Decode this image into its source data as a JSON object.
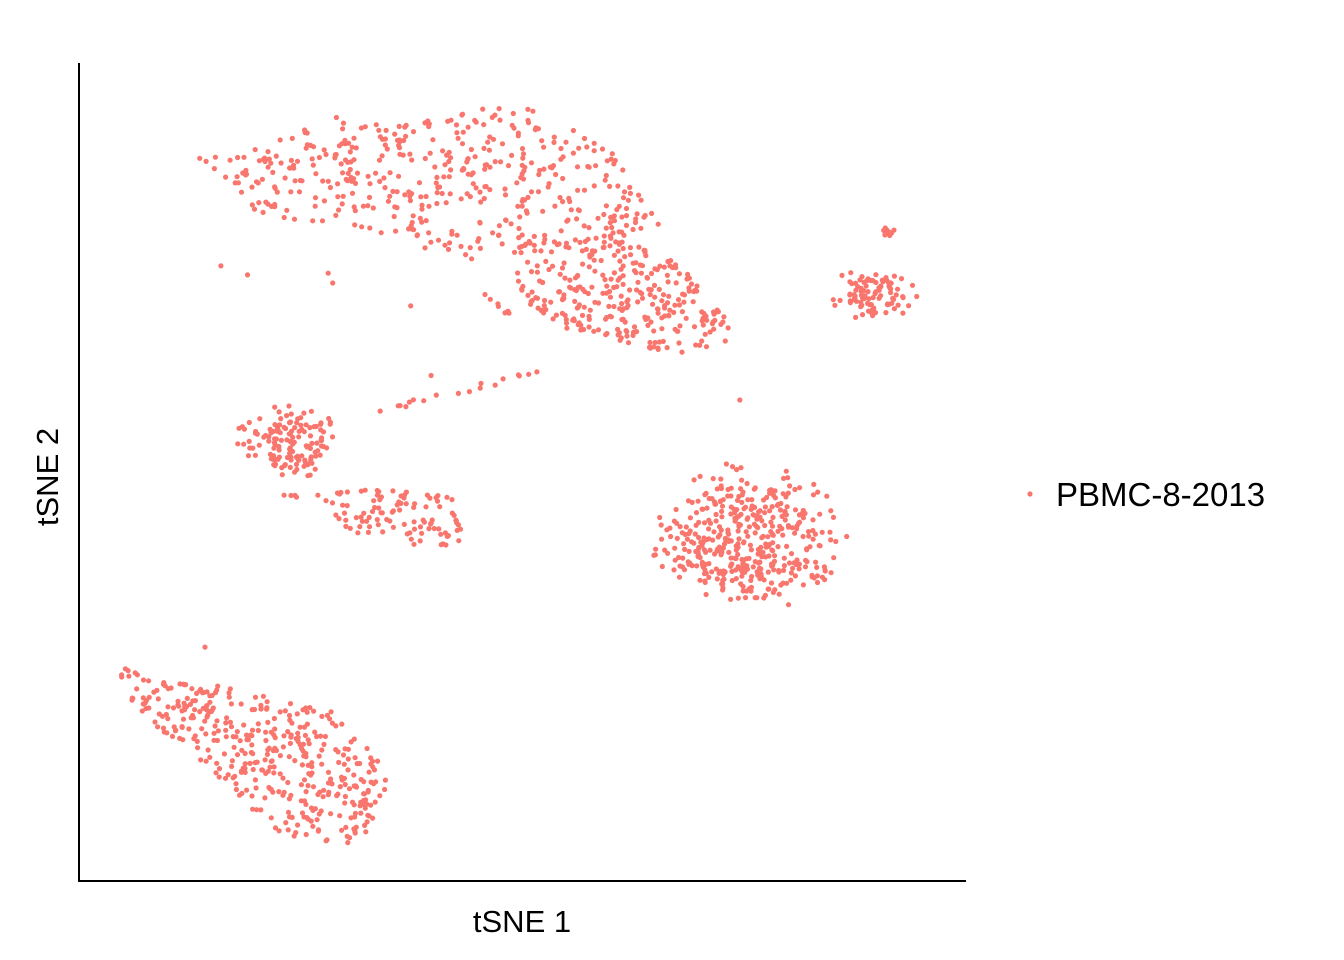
{
  "chart_data": {
    "type": "scatter",
    "title": "",
    "xlabel": "tSNE 1",
    "ylabel": "tSNE 2",
    "xlim": [
      0,
      100
    ],
    "ylim": [
      0,
      100
    ],
    "grid": false,
    "legend_placement": "right",
    "series": [
      {
        "name": "PBMC-8-2013",
        "color": "#F8766D",
        "clusters": [
          {
            "id": "top-left-band",
            "kind": "polygon",
            "count": 430,
            "seed": 11,
            "poly": [
              [
                13.5,
                88.4
              ],
              [
                21.3,
                89.8
              ],
              [
                28.0,
                93.9
              ],
              [
                33.3,
                92.7
              ],
              [
                42.7,
                94.0
              ],
              [
                49.5,
                95.3
              ],
              [
                56.5,
                91.6
              ],
              [
                61.5,
                87.9
              ],
              [
                63.5,
                83.0
              ],
              [
                67.5,
                79.9
              ],
              [
                63.5,
                79.4
              ],
              [
                55.5,
                79.0
              ],
              [
                50.0,
                80.3
              ],
              [
                46.2,
                75.7
              ],
              [
                41.6,
                75.8
              ],
              [
                36.0,
                78.2
              ],
              [
                31.8,
                80.0
              ],
              [
                26.5,
                80.6
              ],
              [
                20.6,
                81.2
              ],
              [
                17.4,
                84.0
              ]
            ]
          },
          {
            "id": "top-middle-lobe",
            "kind": "polygon",
            "count": 330,
            "seed": 12,
            "poly": [
              [
                49.5,
                79.8
              ],
              [
                52.5,
                79.1
              ],
              [
                56.5,
                78.3
              ],
              [
                61.0,
                79.6
              ],
              [
                64.5,
                77.7
              ],
              [
                68.5,
                74.5
              ],
              [
                72.0,
                70.5
              ],
              [
                74.0,
                66.3
              ],
              [
                70.5,
                64.9
              ],
              [
                66.5,
                63.8
              ],
              [
                62.0,
                64.8
              ],
              [
                57.5,
                66.8
              ],
              [
                52.5,
                68.3
              ],
              [
                50.0,
                71.5
              ],
              [
                48.8,
                75.4
              ]
            ]
          },
          {
            "id": "right-small-cluster",
            "kind": "ellipse",
            "count": 95,
            "seed": 13,
            "cx": 89.2,
            "cy": 71.7,
            "rx": 5.5,
            "ry": 3.3
          },
          {
            "id": "right-small-tip",
            "kind": "ellipse",
            "count": 9,
            "seed": 14,
            "cx": 91.3,
            "cy": 79.4,
            "rx": 1.2,
            "ry": 0.8
          },
          {
            "id": "middle-left-cluster",
            "kind": "ellipse",
            "count": 140,
            "seed": 15,
            "cx": 23.6,
            "cy": 53.8,
            "rx": 6.8,
            "ry": 5.0
          },
          {
            "id": "middle-left-tail",
            "kind": "polygon",
            "count": 100,
            "seed": 16,
            "poly": [
              [
                27.6,
                47.5
              ],
              [
                31.8,
                47.9
              ],
              [
                36.8,
                47.7
              ],
              [
                41.0,
                48.1
              ],
              [
                43.5,
                45.8
              ],
              [
                43.2,
                41.3
              ],
              [
                39.6,
                39.9
              ],
              [
                35.4,
                42.3
              ],
              [
                30.6,
                42.5
              ],
              [
                27.2,
                44.8
              ]
            ]
          },
          {
            "id": "middle-right-cluster",
            "kind": "ellipse",
            "count": 430,
            "seed": 17,
            "cx": 75.4,
            "cy": 41.8,
            "rx": 11.8,
            "ry": 9.8
          },
          {
            "id": "bottom-left-band",
            "kind": "polygon",
            "count": 410,
            "seed": 18,
            "poly": [
              [
                4.5,
                26.4
              ],
              [
                9.9,
                24.2
              ],
              [
                15.4,
                23.9
              ],
              [
                20.0,
                22.8
              ],
              [
                24.6,
                21.9
              ],
              [
                29.3,
                20.4
              ],
              [
                31.8,
                17.1
              ],
              [
                34.5,
                14.8
              ],
              [
                34.9,
                10.8
              ],
              [
                31.8,
                4.8
              ],
              [
                27.3,
                4.3
              ],
              [
                21.8,
                6.0
              ],
              [
                16.8,
                11.5
              ],
              [
                10.8,
                16.8
              ],
              [
                5.4,
                22.2
              ]
            ]
          }
        ],
        "bridges": [
          {
            "from": [
              33.7,
              57.6
            ],
            "to": [
              51.6,
              62.1
            ],
            "count": 18
          },
          {
            "from": [
              48.8,
              69.1
            ],
            "to": [
              44.2,
              72.9
            ],
            "count": 8
          },
          {
            "from": [
              27.7,
              46.8
            ],
            "to": [
              22.8,
              47.0
            ],
            "count": 5
          }
        ],
        "outliers": [
          [
            16.0,
            75.2
          ],
          [
            19.0,
            74.1
          ],
          [
            28.1,
            74.3
          ],
          [
            28.6,
            73.1
          ],
          [
            37.4,
            70.3
          ],
          [
            39.7,
            61.8
          ],
          [
            74.5,
            58.8
          ],
          [
            14.2,
            28.6
          ]
        ]
      }
    ]
  }
}
